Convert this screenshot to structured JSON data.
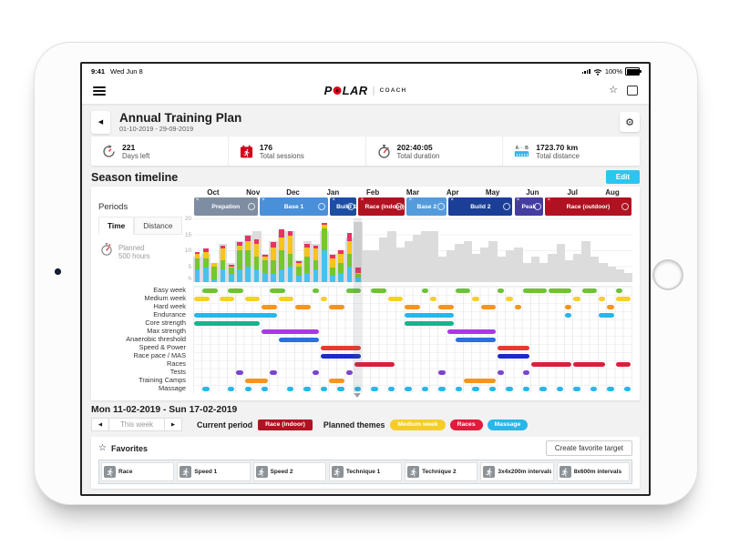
{
  "status_bar": {
    "time": "9:41",
    "date": "Wed Jun 8",
    "battery": "100%"
  },
  "nav": {
    "brand": "POLAR",
    "brand_sub": "COACH"
  },
  "header": {
    "title": "Annual Training Plan",
    "date_range": "01-10-2019 - 29-09-2019"
  },
  "stats": [
    {
      "icon": "days-left-icon",
      "value": "221",
      "label": "Days left"
    },
    {
      "icon": "sessions-icon",
      "value": "176",
      "label": "Total sessions"
    },
    {
      "icon": "duration-icon",
      "value": "202:40:05",
      "label": "Total duration"
    },
    {
      "icon": "distance-icon",
      "value": "1723.70 km",
      "label": "Total distance"
    }
  ],
  "season": {
    "title": "Season timeline",
    "edit_label": "Edit",
    "edit_color": "#2bc6f0",
    "periods_label": "Periods",
    "months": [
      "Oct",
      "Nov",
      "Dec",
      "Jan",
      "Feb",
      "Mar",
      "Apr",
      "May",
      "Jun",
      "Jul",
      "Aug"
    ],
    "periods": [
      {
        "label": "Prepation",
        "color": "#7f8da3",
        "start_pct": 0,
        "end_pct": 15
      },
      {
        "label": "Base 1",
        "color": "#4a90d9",
        "start_pct": 15,
        "end_pct": 31
      },
      {
        "label": "Build 1",
        "color": "#1b4da3",
        "start_pct": 31,
        "end_pct": 37.5
      },
      {
        "label": "Race (indoor)",
        "color": "#b01222",
        "start_pct": 37.5,
        "end_pct": 48.5
      },
      {
        "label": "Base 2",
        "color": "#549bdb",
        "start_pct": 48.5,
        "end_pct": 58
      },
      {
        "label": "Build 2",
        "color": "#1b3e96",
        "start_pct": 58,
        "end_pct": 73
      },
      {
        "label": "Peak",
        "color": "#453ca0",
        "start_pct": 73,
        "end_pct": 80
      },
      {
        "label": "Race (outdoor)",
        "color": "#b01222",
        "start_pct": 80,
        "end_pct": 100
      }
    ],
    "tabs": [
      {
        "label": "Time",
        "active": true
      },
      {
        "label": "Distance",
        "active": false
      }
    ],
    "planned_label": "Planned",
    "planned_value": "500 hours"
  },
  "chart_data": [
    {
      "type": "bar",
      "title": "Weekly training hours",
      "ylabel": "h",
      "ylim": [
        0,
        20
      ],
      "yticks": [
        20,
        15,
        10,
        5
      ],
      "weeks": 52,
      "current_week": 20,
      "planned_color": "#dcdcdc",
      "stack_order": [
        "cyan",
        "green",
        "yellow",
        "pink"
      ],
      "stack_colors": {
        "cyan": "#49c2ea",
        "green": "#76c62e",
        "yellow": "#f5c51b",
        "pink": "#e83266"
      },
      "planned_hours": [
        8,
        9,
        6,
        12,
        6,
        13,
        15,
        16,
        9,
        13,
        16,
        16,
        7,
        13,
        12,
        16,
        9,
        10,
        14,
        19,
        10,
        10,
        14,
        16,
        11,
        13,
        15,
        16,
        16,
        8,
        10,
        12,
        13,
        9,
        11,
        13,
        8,
        10,
        11,
        6,
        8,
        6,
        9,
        12,
        7,
        9,
        13,
        8,
        6,
        5,
        4,
        3
      ],
      "actual_stacks": [
        [
          4,
          3.5,
          1.5,
          0.5
        ],
        [
          4.5,
          3,
          2,
          1
        ],
        [
          1,
          4,
          1,
          0
        ],
        [
          4,
          3,
          3.5,
          1
        ],
        [
          2.5,
          2,
          0.5,
          0.5
        ],
        [
          4,
          6,
          1.5,
          1
        ],
        [
          5,
          5,
          3,
          1.5
        ],
        [
          4,
          4,
          4,
          1.5
        ],
        [
          3,
          4,
          1,
          0.5
        ],
        [
          3,
          4,
          4,
          1.5
        ],
        [
          4,
          6,
          4,
          2.5
        ],
        [
          5,
          4,
          5.5,
          1.5
        ],
        [
          2,
          3,
          1,
          0.5
        ],
        [
          3,
          5,
          3,
          1
        ],
        [
          4,
          3,
          3.5,
          1
        ],
        [
          10,
          7,
          1,
          0.5
        ],
        [
          2,
          2.5,
          3,
          1
        ],
        [
          3,
          3,
          3,
          1
        ],
        [
          5,
          4,
          4,
          2.5
        ],
        [
          1.5,
          1,
          0.5,
          1.5
        ]
      ]
    },
    {
      "type": "gantt",
      "weeks": 52,
      "rows": [
        {
          "label": "Easy week",
          "color": "#6dc238",
          "segments": [
            [
              2,
              3
            ],
            [
              5,
              6
            ],
            [
              10,
              11
            ],
            [
              15,
              15
            ],
            [
              19,
              20
            ],
            [
              22,
              23
            ],
            [
              28,
              28
            ],
            [
              32,
              33
            ],
            [
              37,
              37
            ],
            [
              40,
              42
            ],
            [
              43,
              45
            ],
            [
              47,
              48
            ],
            [
              51,
              51
            ]
          ]
        },
        {
          "label": "Medium week",
          "color": "#f7d028",
          "segments": [
            [
              1,
              2
            ],
            [
              4,
              5
            ],
            [
              7,
              8
            ],
            [
              11,
              12
            ],
            [
              16,
              16
            ],
            [
              24,
              25
            ],
            [
              29,
              29
            ],
            [
              34,
              34
            ],
            [
              38,
              38
            ],
            [
              46,
              46
            ],
            [
              49,
              49
            ],
            [
              51,
              52
            ]
          ]
        },
        {
          "label": "Hard week",
          "color": "#f7941e",
          "segments": [
            [
              9,
              10
            ],
            [
              13,
              14
            ],
            [
              17,
              18
            ],
            [
              26,
              27
            ],
            [
              30,
              31
            ],
            [
              35,
              36
            ],
            [
              39,
              39
            ],
            [
              45,
              45
            ],
            [
              50,
              50
            ]
          ]
        },
        {
          "label": "Endurance",
          "color": "#29b6e8",
          "segments": [
            [
              1,
              10
            ],
            [
              26,
              31
            ],
            [
              45,
              45
            ],
            [
              49,
              50
            ]
          ]
        },
        {
          "label": "Core strength",
          "color": "#13b58c",
          "segments": [
            [
              1,
              8
            ],
            [
              26,
              31
            ]
          ]
        },
        {
          "label": "Max strength",
          "color": "#a63ae0",
          "segments": [
            [
              9,
              15
            ],
            [
              31,
              36
            ]
          ]
        },
        {
          "label": "Anaerobic threshold",
          "color": "#2b6fe0",
          "segments": [
            [
              11,
              15
            ],
            [
              32,
              36
            ]
          ]
        },
        {
          "label": "Speed & Power",
          "color": "#e83a30",
          "segments": [
            [
              16,
              20
            ],
            [
              37,
              40
            ]
          ]
        },
        {
          "label": "Race pace / MAS",
          "color": "#1a2bc8",
          "segments": [
            [
              16,
              20
            ],
            [
              37,
              40
            ]
          ]
        },
        {
          "label": "Races",
          "color": "#d8203c",
          "segments": [
            [
              20,
              24
            ],
            [
              41,
              45
            ],
            [
              46,
              49
            ],
            [
              51,
              52
            ]
          ]
        },
        {
          "label": "Tests",
          "color": "#7b44cf",
          "segments": [
            [
              6,
              6
            ],
            [
              10,
              10
            ],
            [
              15,
              15
            ],
            [
              19,
              19
            ],
            [
              30,
              30
            ],
            [
              37,
              37
            ],
            [
              40,
              40
            ]
          ]
        },
        {
          "label": "Training Camps",
          "color": "#f7941e",
          "segments": [
            [
              7,
              9
            ],
            [
              17,
              18
            ],
            [
              33,
              36
            ]
          ]
        },
        {
          "label": "Massage",
          "color": "#29b6e8",
          "segments": [
            [
              2,
              2
            ],
            [
              5,
              5
            ],
            [
              7,
              7
            ],
            [
              9,
              9
            ],
            [
              12,
              12
            ],
            [
              14,
              14
            ],
            [
              16,
              16
            ],
            [
              18,
              18
            ],
            [
              20,
              20
            ],
            [
              22,
              22
            ],
            [
              24,
              24
            ],
            [
              26,
              26
            ],
            [
              28,
              28
            ],
            [
              30,
              30
            ],
            [
              32,
              32
            ],
            [
              34,
              34
            ],
            [
              36,
              36
            ],
            [
              38,
              38
            ],
            [
              40,
              40
            ],
            [
              42,
              42
            ],
            [
              44,
              44
            ],
            [
              46,
              46
            ],
            [
              48,
              48
            ],
            [
              50,
              50
            ],
            [
              52,
              52
            ]
          ]
        }
      ]
    }
  ],
  "week_detail": {
    "title": "Mon 11-02-2019 - Sun 17-02-2019",
    "nav_label": "This week",
    "current_period_label": "Current period",
    "current_period_badge": {
      "label": "Race (indoor)",
      "color": "#b01222"
    },
    "planned_themes_label": "Planned themes",
    "theme_badges": [
      {
        "label": "Medium week",
        "color": "#f5cd2a"
      },
      {
        "label": "Races",
        "color": "#e01b3c"
      },
      {
        "label": "Massage",
        "color": "#29b6e8"
      }
    ]
  },
  "favorites": {
    "title": "Favorites",
    "create_label": "Create favorite target",
    "items": [
      "Race",
      "Speed 1",
      "Speed 2",
      "Technique 1",
      "Technique 2",
      "3x4x200m intervals",
      "8x600m intervals"
    ]
  }
}
